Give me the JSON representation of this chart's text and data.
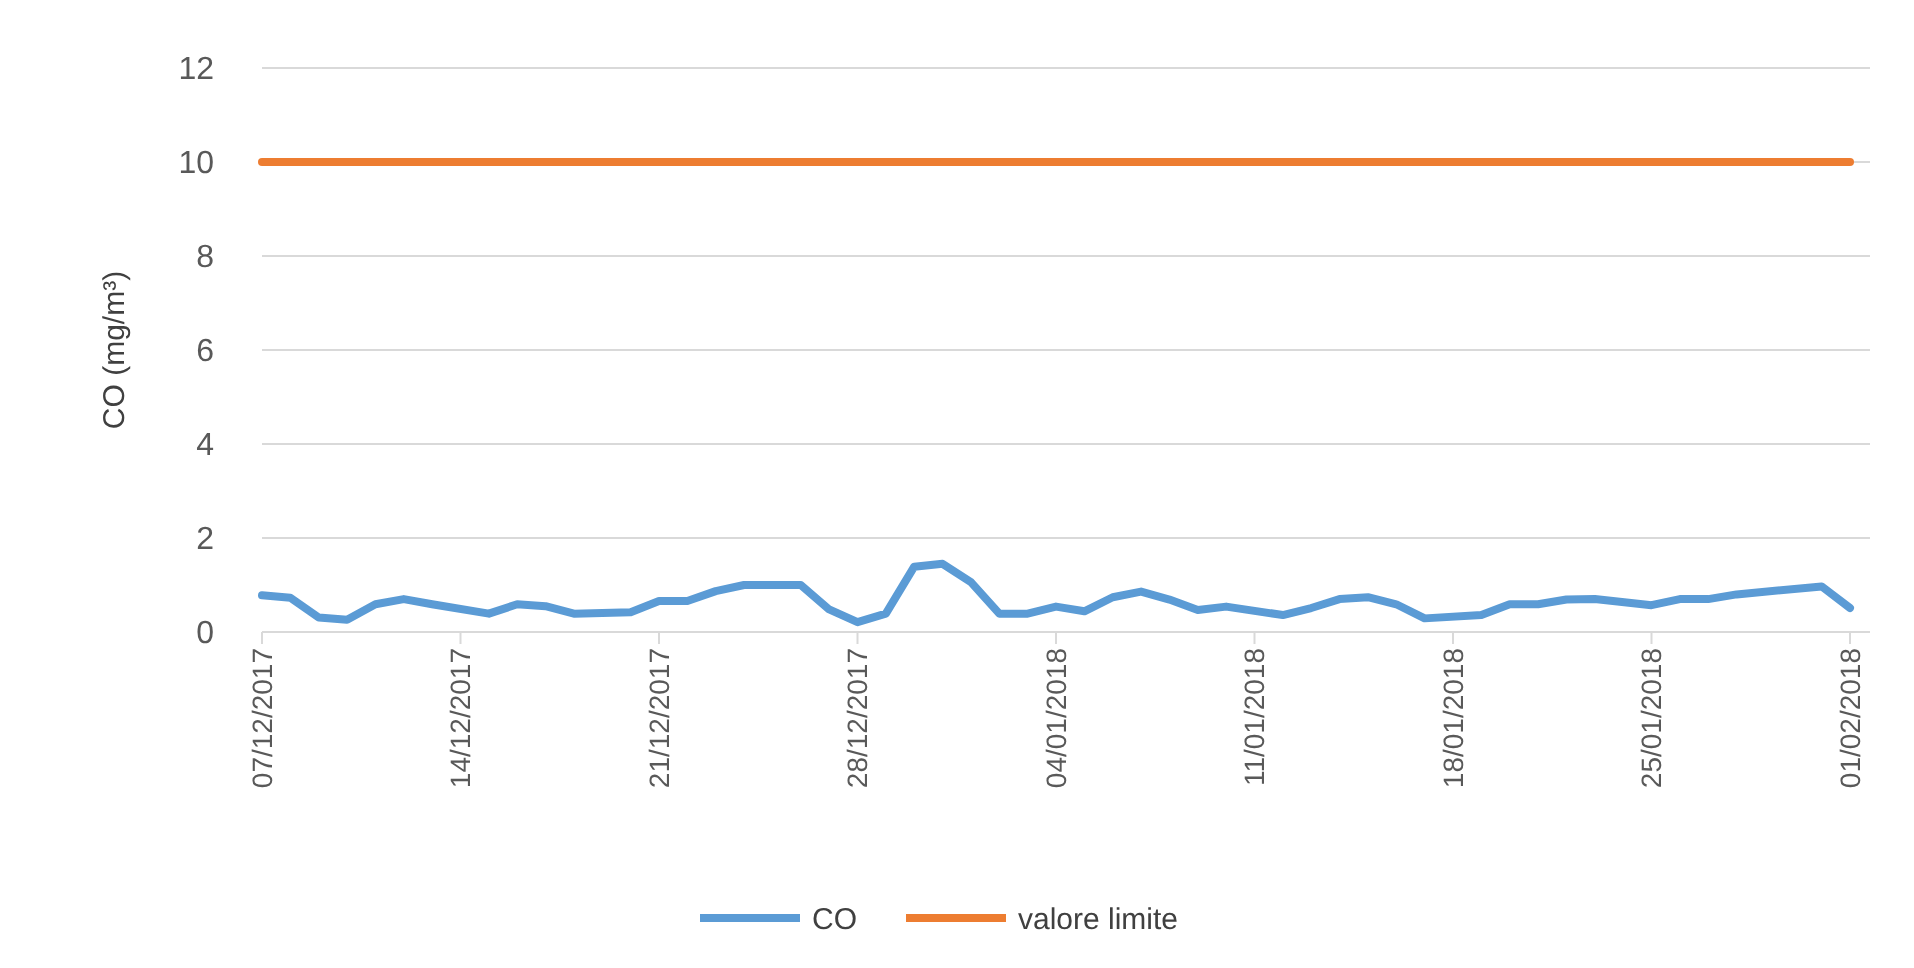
{
  "chart_data": {
    "type": "line",
    "ylabel": "CO (mg/m³)",
    "xlim": [
      "2017-12-07",
      "2018-02-01"
    ],
    "xticks": [
      {
        "value": "2017-12-07",
        "label": "07/12/2017"
      },
      {
        "value": "2017-12-14",
        "label": "14/12/2017"
      },
      {
        "value": "2017-12-21",
        "label": "21/12/2017"
      },
      {
        "value": "2017-12-28",
        "label": "28/12/2017"
      },
      {
        "value": "2018-01-04",
        "label": "04/01/2018"
      },
      {
        "value": "2018-01-11",
        "label": "11/01/2018"
      },
      {
        "value": "2018-01-18",
        "label": "18/01/2018"
      },
      {
        "value": "2018-01-25",
        "label": "25/01/2018"
      },
      {
        "value": "2018-02-01",
        "label": "01/02/2018"
      }
    ],
    "ylim": [
      0,
      12
    ],
    "yticks": [
      0,
      2,
      4,
      6,
      8,
      10,
      12
    ],
    "grid": "y",
    "legend": "bottom",
    "marker": "none",
    "line_style": "solid",
    "series": [
      {
        "name": "CO",
        "color": "#5b9bd5",
        "x": [
          "2017-12-07",
          "2017-12-08",
          "2017-12-09",
          "2017-12-10",
          "2017-12-11",
          "2017-12-12",
          "2017-12-13",
          "2017-12-15",
          "2017-12-16",
          "2017-12-17",
          "2017-12-18",
          "2017-12-20",
          "2017-12-21",
          "2017-12-22",
          "2017-12-23",
          "2017-12-24",
          "2017-12-26",
          "2017-12-27",
          "2017-12-28",
          "2017-12-29",
          "2017-12-30",
          "2017-12-31",
          "2018-01-01",
          "2018-01-02",
          "2018-01-03",
          "2018-01-04",
          "2018-01-05",
          "2018-01-06",
          "2018-01-07",
          "2018-01-08",
          "2018-01-09",
          "2018-01-10",
          "2018-01-12",
          "2018-01-13",
          "2018-01-14",
          "2018-01-15",
          "2018-01-16",
          "2018-01-17",
          "2018-01-19",
          "2018-01-20",
          "2018-01-21",
          "2018-01-22",
          "2018-01-23",
          "2018-01-25",
          "2018-01-26",
          "2018-01-27",
          "2018-01-28",
          "2018-01-31",
          "2018-02-01"
        ],
        "values": [
          0.78,
          0.73,
          0.31,
          0.26,
          0.59,
          0.7,
          0.59,
          0.39,
          0.59,
          0.55,
          0.39,
          0.42,
          0.66,
          0.66,
          0.87,
          1.0,
          1.0,
          0.48,
          0.21,
          0.39,
          1.39,
          1.45,
          1.06,
          0.39,
          0.39,
          0.54,
          0.44,
          0.74,
          0.86,
          0.69,
          0.47,
          0.54,
          0.36,
          0.51,
          0.7,
          0.74,
          0.59,
          0.29,
          0.36,
          0.59,
          0.59,
          0.69,
          0.7,
          0.57,
          0.7,
          0.7,
          0.8,
          0.97,
          0.51
        ]
      },
      {
        "name": "valore limite",
        "color": "#ed7d31",
        "x": [
          "2017-12-07",
          "2018-02-01"
        ],
        "values": [
          10,
          10
        ]
      }
    ]
  }
}
